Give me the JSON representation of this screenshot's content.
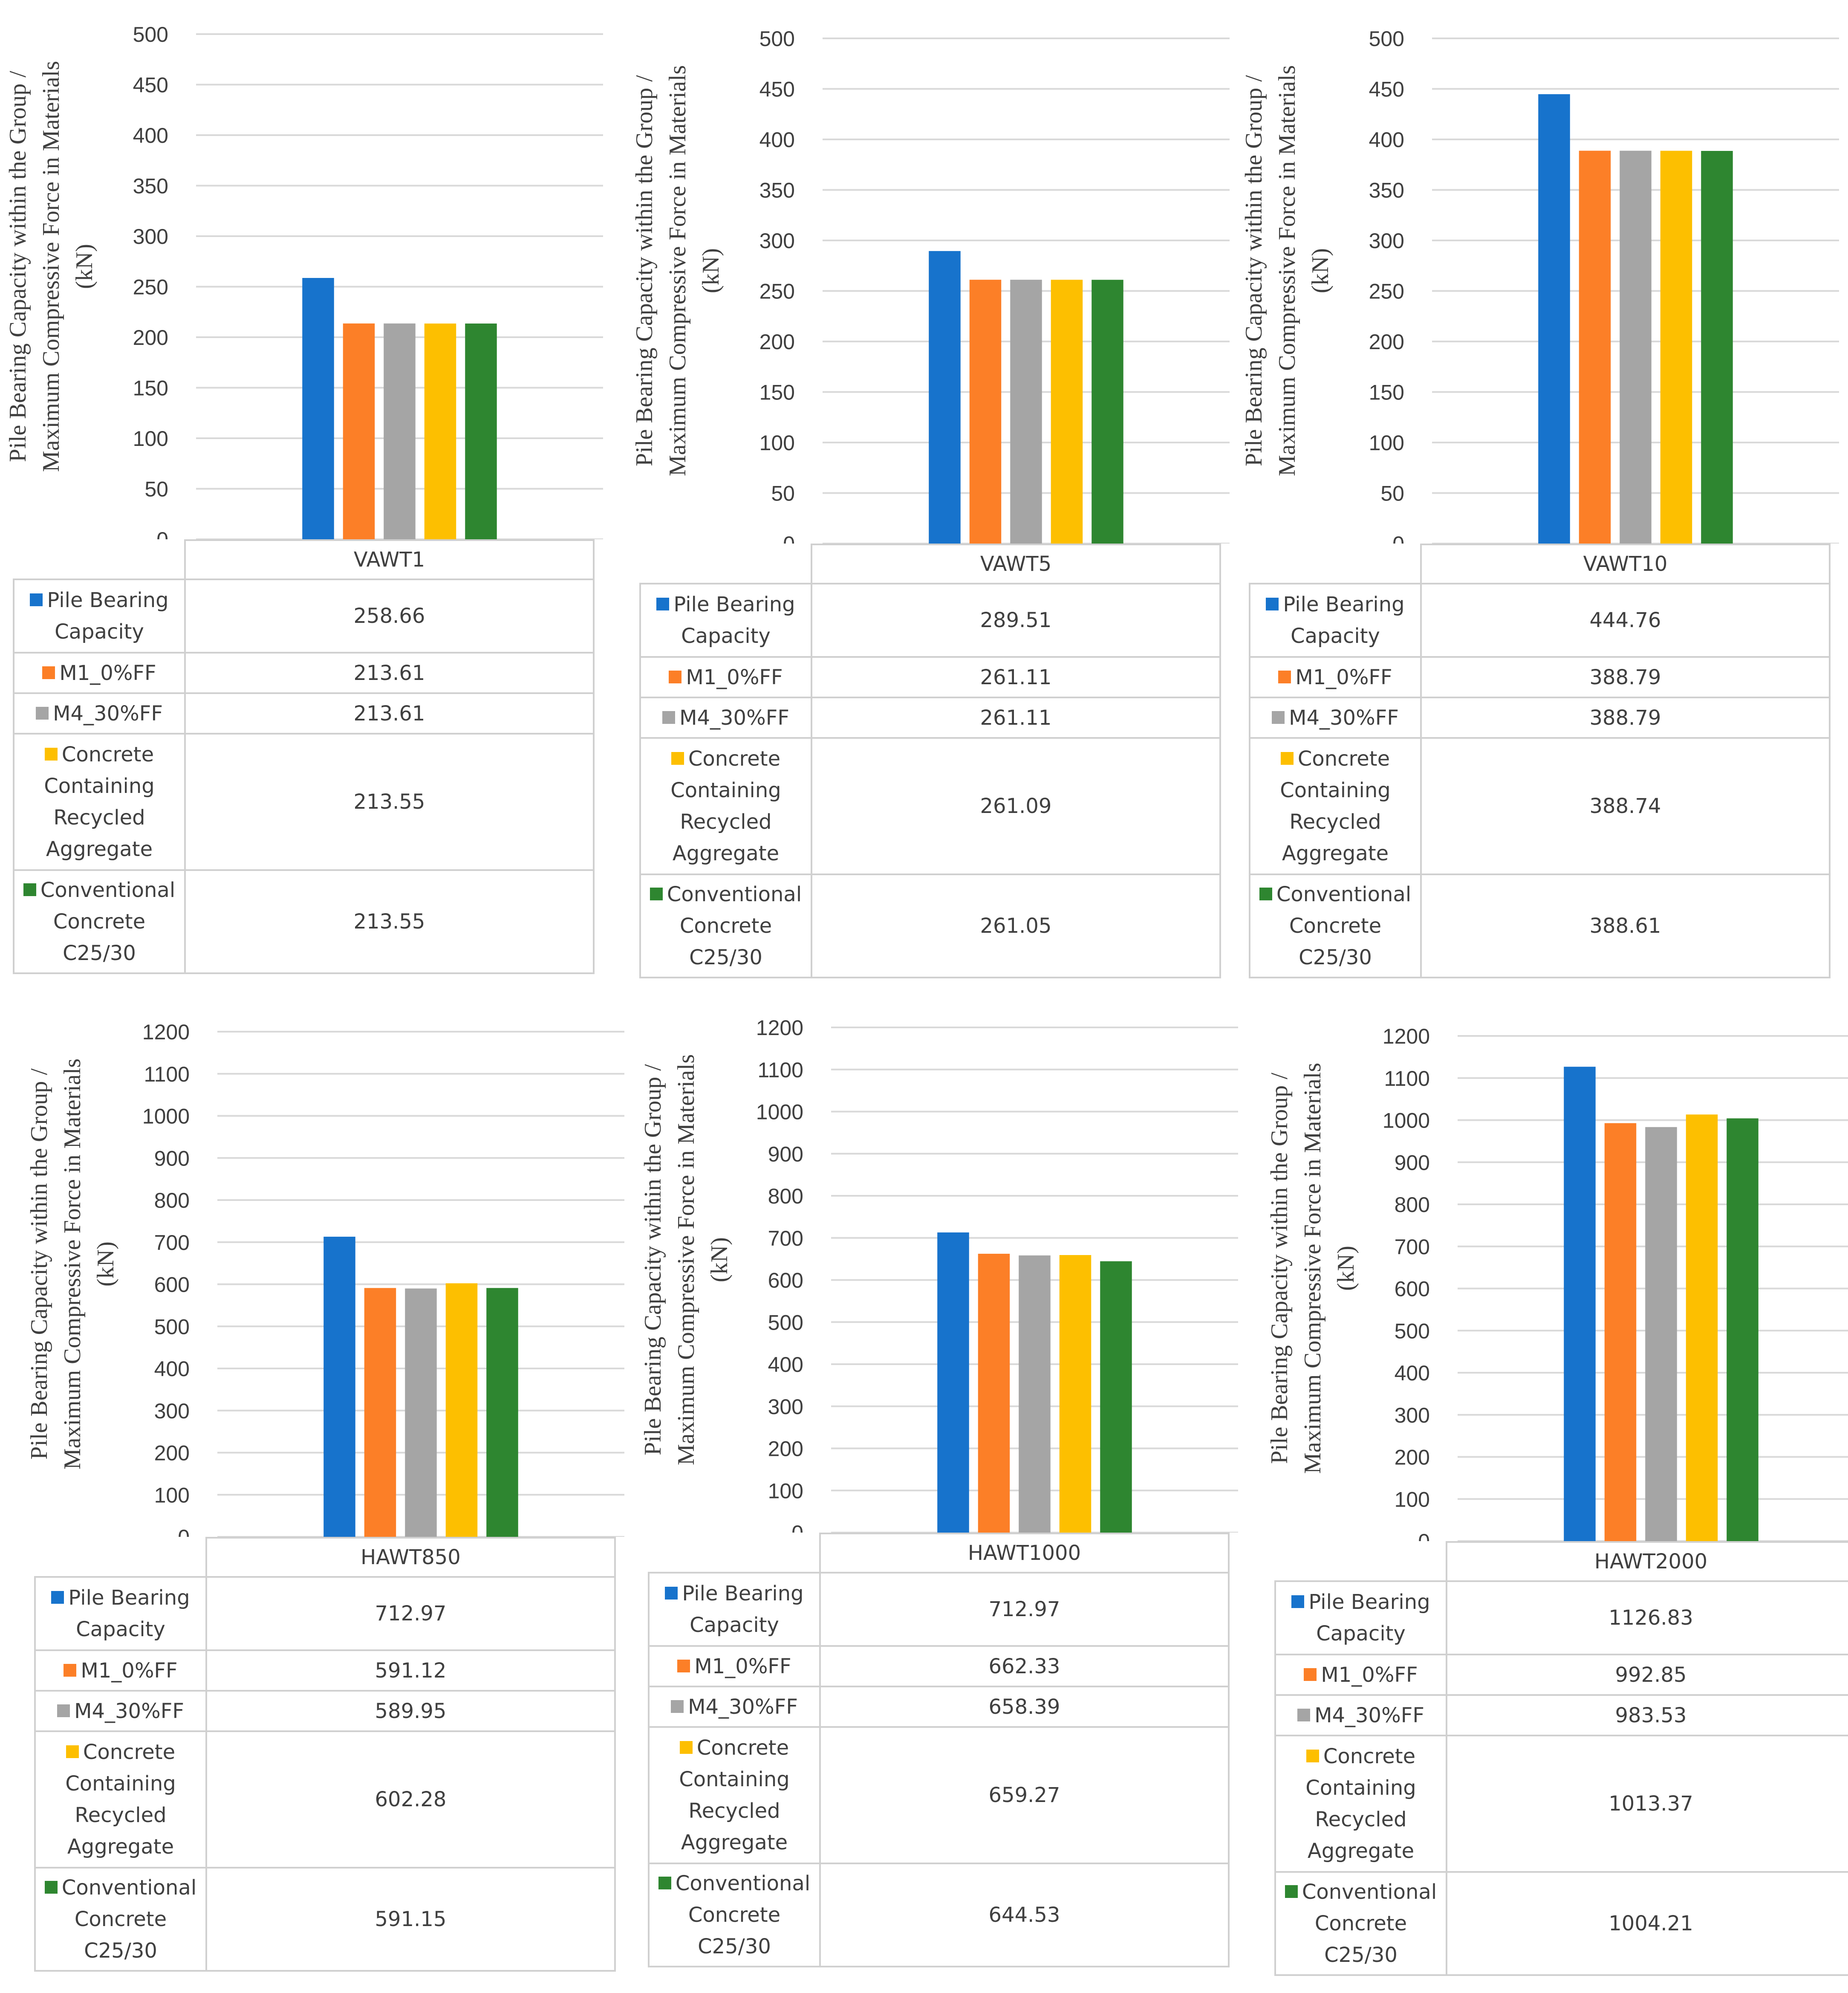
{
  "y_label_lines": [
    "Pile Bearing Capacity  within the Group /",
    "Maximum Compressive  Force in Materials",
    "(kN)"
  ],
  "series": [
    {
      "name": "Pile Bearing Capacity",
      "label_lines": [
        "Pile Bearing",
        "Capacity"
      ],
      "color": "#1773cc"
    },
    {
      "name": "M1_0%FF",
      "label_lines": [
        "M1_0%FF"
      ],
      "color": "#fc7f27"
    },
    {
      "name": "M4_30%FF",
      "label_lines": [
        "M4_30%FF"
      ],
      "color": "#a5a5a5"
    },
    {
      "name": "Concrete Containing Recycled Aggregate",
      "label_lines": [
        "Concrete",
        "Containing",
        "Recycled",
        "Aggregate"
      ],
      "color": "#fdbf00"
    },
    {
      "name": "Conventional Concrete C25/30",
      "label_lines": [
        "Conventional",
        "Concrete",
        "C25/30"
      ],
      "color": "#2e8630"
    }
  ],
  "chart_data": [
    {
      "type": "bar",
      "category": "VAWT1",
      "ylim": [
        0,
        500
      ],
      "ystep": 50,
      "grid": true,
      "values": [
        258.66,
        213.61,
        213.61,
        213.55,
        213.55
      ],
      "value_labels": [
        "258.66",
        "213.61",
        "213.61",
        "213.55",
        "213.55"
      ]
    },
    {
      "type": "bar",
      "category": "VAWT5",
      "ylim": [
        0,
        500
      ],
      "ystep": 50,
      "grid": true,
      "values": [
        289.51,
        261.11,
        261.11,
        261.09,
        261.05
      ],
      "value_labels": [
        "289.51",
        "261.11",
        "261.11",
        "261.09",
        "261.05"
      ]
    },
    {
      "type": "bar",
      "category": "VAWT10",
      "ylim": [
        0,
        500
      ],
      "ystep": 50,
      "grid": true,
      "values": [
        444.76,
        388.79,
        388.79,
        388.74,
        388.61
      ],
      "value_labels": [
        "444.76",
        "388.79",
        "388.79",
        "388.74",
        "388.61"
      ]
    },
    {
      "type": "bar",
      "category": "HAWT850",
      "ylim": [
        0,
        1200
      ],
      "ystep": 100,
      "grid": true,
      "values": [
        712.97,
        591.12,
        589.95,
        602.28,
        591.15
      ],
      "value_labels": [
        "712.97",
        "591.12",
        "589.95",
        "602.28",
        "591.15"
      ]
    },
    {
      "type": "bar",
      "category": "HAWT1000",
      "ylim": [
        0,
        1200
      ],
      "ystep": 100,
      "grid": true,
      "values": [
        712.97,
        662.33,
        658.39,
        659.27,
        644.53
      ],
      "value_labels": [
        "712.97",
        "662.33",
        "658.39",
        "659.27",
        "644.53"
      ]
    },
    {
      "type": "bar",
      "category": "HAWT2000",
      "ylim": [
        0,
        1200
      ],
      "ystep": 100,
      "grid": true,
      "values": [
        1126.83,
        992.85,
        983.53,
        1013.37,
        1004.21
      ],
      "value_labels": [
        "1126.83",
        "992.85",
        "983.53",
        "1013.37",
        "1004.21"
      ]
    }
  ]
}
